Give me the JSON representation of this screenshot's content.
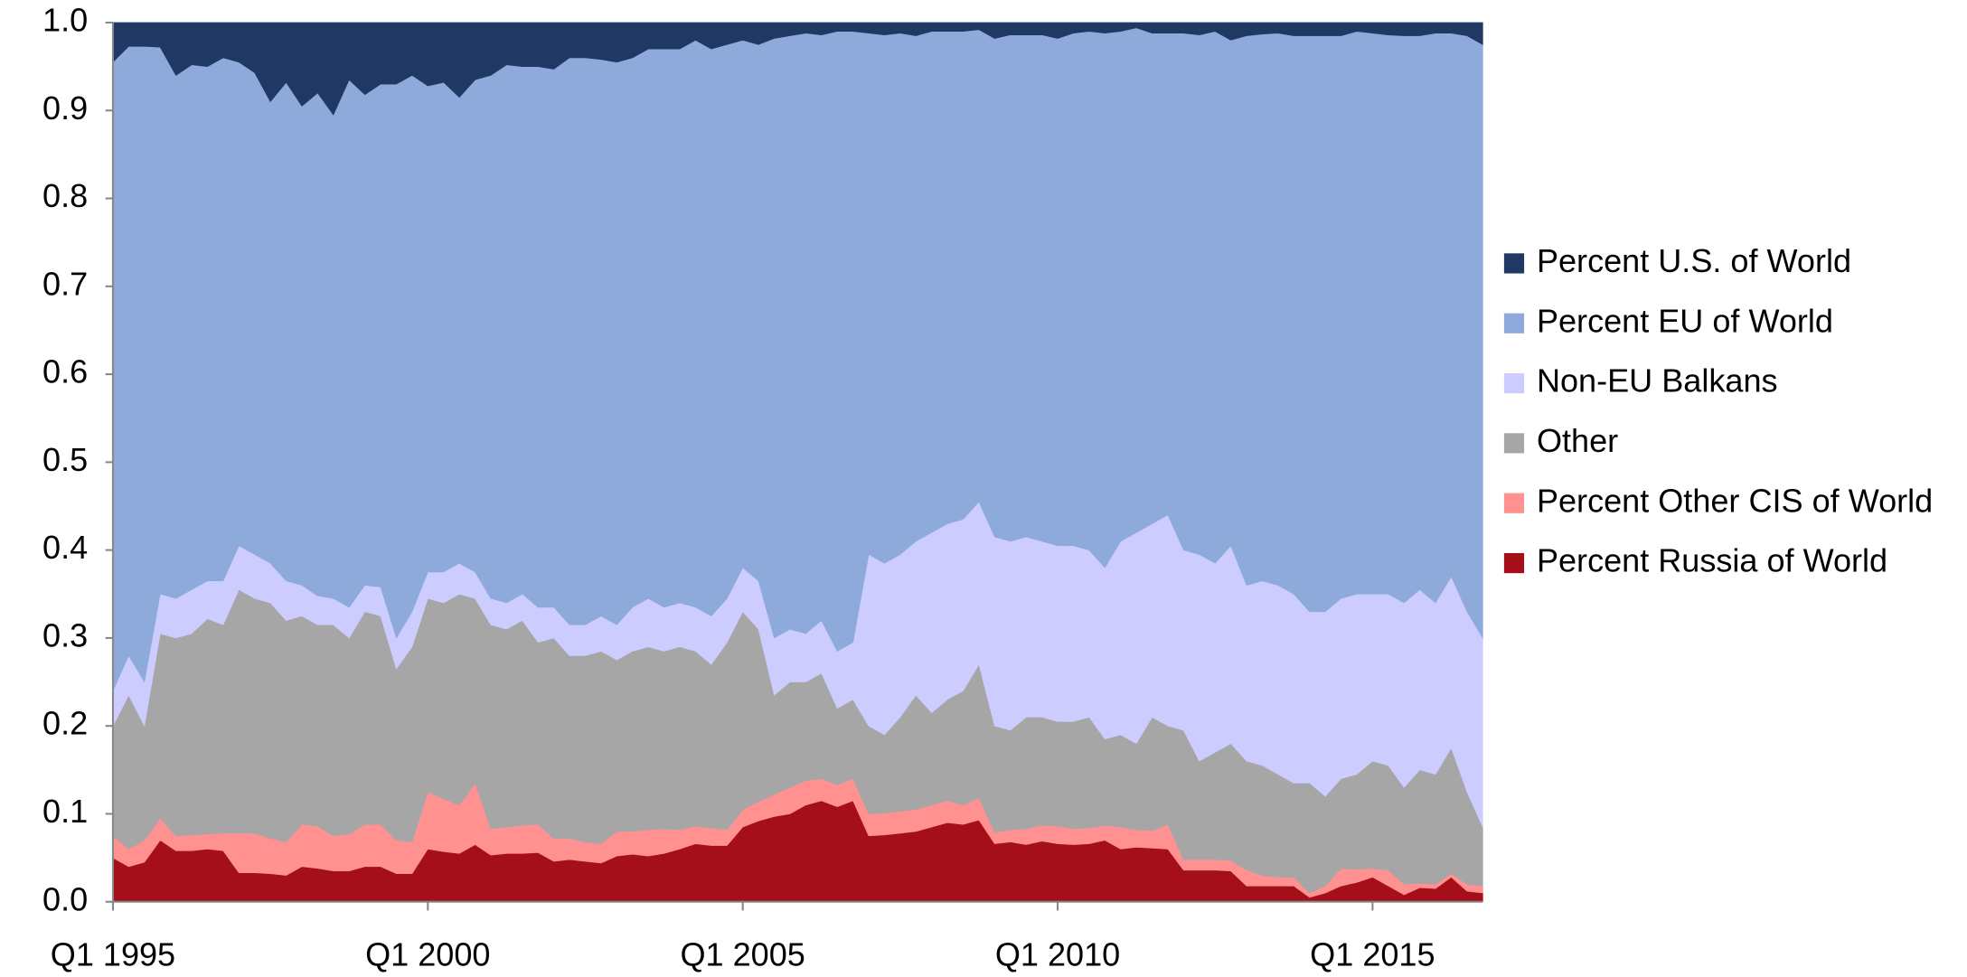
{
  "chart_data": {
    "type": "stacked_area",
    "categories": [
      "Q1 1995",
      null,
      null,
      null,
      null,
      null,
      null,
      null,
      null,
      null,
      null,
      null,
      null,
      null,
      null,
      null,
      null,
      null,
      null,
      null,
      "Q1 2000",
      null,
      null,
      null,
      null,
      null,
      null,
      null,
      null,
      null,
      null,
      null,
      null,
      null,
      null,
      null,
      null,
      null,
      null,
      null,
      "Q1 2005",
      null,
      null,
      null,
      null,
      null,
      null,
      null,
      null,
      null,
      null,
      null,
      null,
      null,
      null,
      null,
      null,
      null,
      null,
      null,
      "Q1 2010",
      null,
      null,
      null,
      null,
      null,
      null,
      null,
      null,
      null,
      null,
      null,
      null,
      null,
      null,
      null,
      null,
      null,
      null,
      null,
      "Q1 2015",
      null,
      null,
      null,
      null,
      null,
      null,
      null
    ],
    "ylim": [
      0,
      1
    ],
    "yticks": [
      {
        "value": 0,
        "label": "0.0"
      },
      0.1,
      0.2,
      0.3,
      0.4,
      0.5,
      0.6,
      0.7,
      0.8,
      0.9,
      {
        "value": 1,
        "label": "1.0"
      }
    ],
    "legend": "right",
    "series": [
      {
        "name": "Percent Russia of World",
        "color": "#a50f1a",
        "values": [
          0.05,
          0.04,
          0.045,
          0.07,
          0.058,
          0.058,
          0.06,
          0.058,
          0.033,
          0.033,
          0.032,
          0.03,
          0.04,
          0.038,
          0.035,
          0.035,
          0.04,
          0.04,
          0.032,
          0.032,
          0.06,
          0.057,
          0.055,
          0.065,
          0.053,
          0.055,
          0.055,
          0.056,
          0.046,
          0.048,
          0.046,
          0.044,
          0.052,
          0.054,
          0.052,
          0.055,
          0.06,
          0.066,
          0.064,
          0.064,
          0.085,
          0.092,
          0.097,
          0.1,
          0.11,
          0.115,
          0.108,
          0.115,
          0.075,
          0.076,
          0.078,
          0.08,
          0.085,
          0.09,
          0.088,
          0.093,
          0.066,
          0.068,
          0.065,
          0.069,
          0.066,
          0.065,
          0.066,
          0.07,
          0.06,
          0.062,
          0.061,
          0.06,
          0.036,
          0.036,
          0.036,
          0.035,
          0.018,
          0.018,
          0.018,
          0.018,
          0.005,
          0.01,
          0.018,
          0.022,
          0.028,
          0.018,
          0.008,
          0.016,
          0.015,
          0.028,
          0.012,
          0.01
        ]
      },
      {
        "name": "Percent Other CIS of World",
        "color": "#ff9191",
        "values": [
          0.025,
          0.02,
          0.025,
          0.025,
          0.017,
          0.018,
          0.017,
          0.02,
          0.045,
          0.045,
          0.04,
          0.038,
          0.048,
          0.048,
          0.04,
          0.042,
          0.048,
          0.048,
          0.038,
          0.036,
          0.065,
          0.06,
          0.055,
          0.07,
          0.03,
          0.03,
          0.032,
          0.032,
          0.026,
          0.024,
          0.022,
          0.022,
          0.028,
          0.026,
          0.03,
          0.028,
          0.022,
          0.02,
          0.02,
          0.018,
          0.02,
          0.022,
          0.025,
          0.03,
          0.028,
          0.025,
          0.025,
          0.025,
          0.025,
          0.025,
          0.025,
          0.025,
          0.025,
          0.025,
          0.022,
          0.025,
          0.013,
          0.014,
          0.018,
          0.018,
          0.02,
          0.018,
          0.018,
          0.017,
          0.025,
          0.02,
          0.02,
          0.028,
          0.012,
          0.012,
          0.012,
          0.012,
          0.018,
          0.012,
          0.01,
          0.01,
          0.005,
          0.008,
          0.02,
          0.015,
          0.01,
          0.018,
          0.012,
          0.005,
          0.005,
          0.004,
          0.008,
          0.008
        ]
      },
      {
        "name": "Other",
        "color": "#a6a6a6",
        "values": [
          0.125,
          0.175,
          0.13,
          0.21,
          0.225,
          0.229,
          0.245,
          0.237,
          0.277,
          0.267,
          0.268,
          0.252,
          0.237,
          0.229,
          0.24,
          0.223,
          0.242,
          0.237,
          0.195,
          0.222,
          0.22,
          0.223,
          0.24,
          0.21,
          0.232,
          0.225,
          0.233,
          0.207,
          0.228,
          0.208,
          0.212,
          0.219,
          0.195,
          0.205,
          0.208,
          0.202,
          0.208,
          0.199,
          0.186,
          0.213,
          0.225,
          0.196,
          0.113,
          0.12,
          0.112,
          0.12,
          0.087,
          0.09,
          0.1,
          0.089,
          0.107,
          0.13,
          0.105,
          0.115,
          0.13,
          0.152,
          0.121,
          0.113,
          0.127,
          0.123,
          0.119,
          0.122,
          0.126,
          0.098,
          0.105,
          0.098,
          0.129,
          0.112,
          0.147,
          0.112,
          0.122,
          0.133,
          0.124,
          0.125,
          0.117,
          0.107,
          0.125,
          0.102,
          0.102,
          0.108,
          0.122,
          0.119,
          0.11,
          0.129,
          0.125,
          0.143,
          0.105,
          0.067
        ]
      },
      {
        "name": "Non-EU Balkans",
        "color": "#ccccff",
        "values": [
          0.04,
          0.045,
          0.05,
          0.045,
          0.045,
          0.05,
          0.043,
          0.05,
          0.05,
          0.05,
          0.045,
          0.045,
          0.035,
          0.033,
          0.03,
          0.035,
          0.03,
          0.033,
          0.035,
          0.04,
          0.03,
          0.035,
          0.035,
          0.03,
          0.03,
          0.03,
          0.03,
          0.04,
          0.035,
          0.035,
          0.035,
          0.04,
          0.04,
          0.05,
          0.055,
          0.05,
          0.05,
          0.05,
          0.055,
          0.05,
          0.05,
          0.055,
          0.065,
          0.06,
          0.055,
          0.06,
          0.065,
          0.065,
          0.195,
          0.195,
          0.185,
          0.175,
          0.205,
          0.2,
          0.195,
          0.185,
          0.215,
          0.215,
          0.205,
          0.2,
          0.2,
          0.2,
          0.19,
          0.195,
          0.22,
          0.24,
          0.22,
          0.24,
          0.205,
          0.235,
          0.215,
          0.225,
          0.2,
          0.21,
          0.215,
          0.215,
          0.195,
          0.21,
          0.205,
          0.205,
          0.19,
          0.195,
          0.21,
          0.205,
          0.195,
          0.195,
          0.205,
          0.215
        ]
      },
      {
        "name": "Percent EU of World",
        "color": "#8eaadb",
        "values": [
          0.715,
          0.693,
          0.723,
          0.622,
          0.595,
          0.597,
          0.585,
          0.595,
          0.55,
          0.548,
          0.525,
          0.567,
          0.545,
          0.572,
          0.55,
          0.6,
          0.558,
          0.572,
          0.63,
          0.61,
          0.553,
          0.557,
          0.53,
          0.56,
          0.595,
          0.612,
          0.6,
          0.615,
          0.612,
          0.645,
          0.645,
          0.633,
          0.64,
          0.625,
          0.625,
          0.635,
          0.63,
          0.645,
          0.645,
          0.63,
          0.6,
          0.61,
          0.682,
          0.675,
          0.683,
          0.666,
          0.705,
          0.695,
          0.593,
          0.601,
          0.593,
          0.575,
          0.57,
          0.56,
          0.555,
          0.537,
          0.567,
          0.576,
          0.571,
          0.576,
          0.577,
          0.583,
          0.59,
          0.608,
          0.58,
          0.574,
          0.558,
          0.548,
          0.588,
          0.591,
          0.605,
          0.575,
          0.625,
          0.622,
          0.628,
          0.635,
          0.655,
          0.655,
          0.64,
          0.64,
          0.638,
          0.636,
          0.645,
          0.63,
          0.648,
          0.618,
          0.655,
          0.675
        ]
      },
      {
        "name": "Percent U.S. of World",
        "color": "#203864",
        "values": [
          0.045,
          0.027,
          0.027,
          0.028,
          0.06,
          0.048,
          0.05,
          0.04,
          0.045,
          0.057,
          0.09,
          0.068,
          0.095,
          0.08,
          0.105,
          0.065,
          0.082,
          0.07,
          0.07,
          0.06,
          0.072,
          0.068,
          0.085,
          0.065,
          0.06,
          0.048,
          0.05,
          0.05,
          0.053,
          0.04,
          0.04,
          0.042,
          0.045,
          0.04,
          0.03,
          0.03,
          0.03,
          0.02,
          0.03,
          0.025,
          0.02,
          0.025,
          0.018,
          0.015,
          0.012,
          0.014,
          0.01,
          0.01,
          0.012,
          0.014,
          0.012,
          0.015,
          0.01,
          0.01,
          0.01,
          0.008,
          0.018,
          0.014,
          0.014,
          0.014,
          0.018,
          0.012,
          0.01,
          0.012,
          0.01,
          0.006,
          0.012,
          0.012,
          0.012,
          0.014,
          0.01,
          0.02,
          0.015,
          0.013,
          0.012,
          0.015,
          0.015,
          0.015,
          0.015,
          0.01,
          0.012,
          0.014,
          0.015,
          0.015,
          0.012,
          0.012,
          0.015,
          0.025
        ]
      }
    ]
  }
}
